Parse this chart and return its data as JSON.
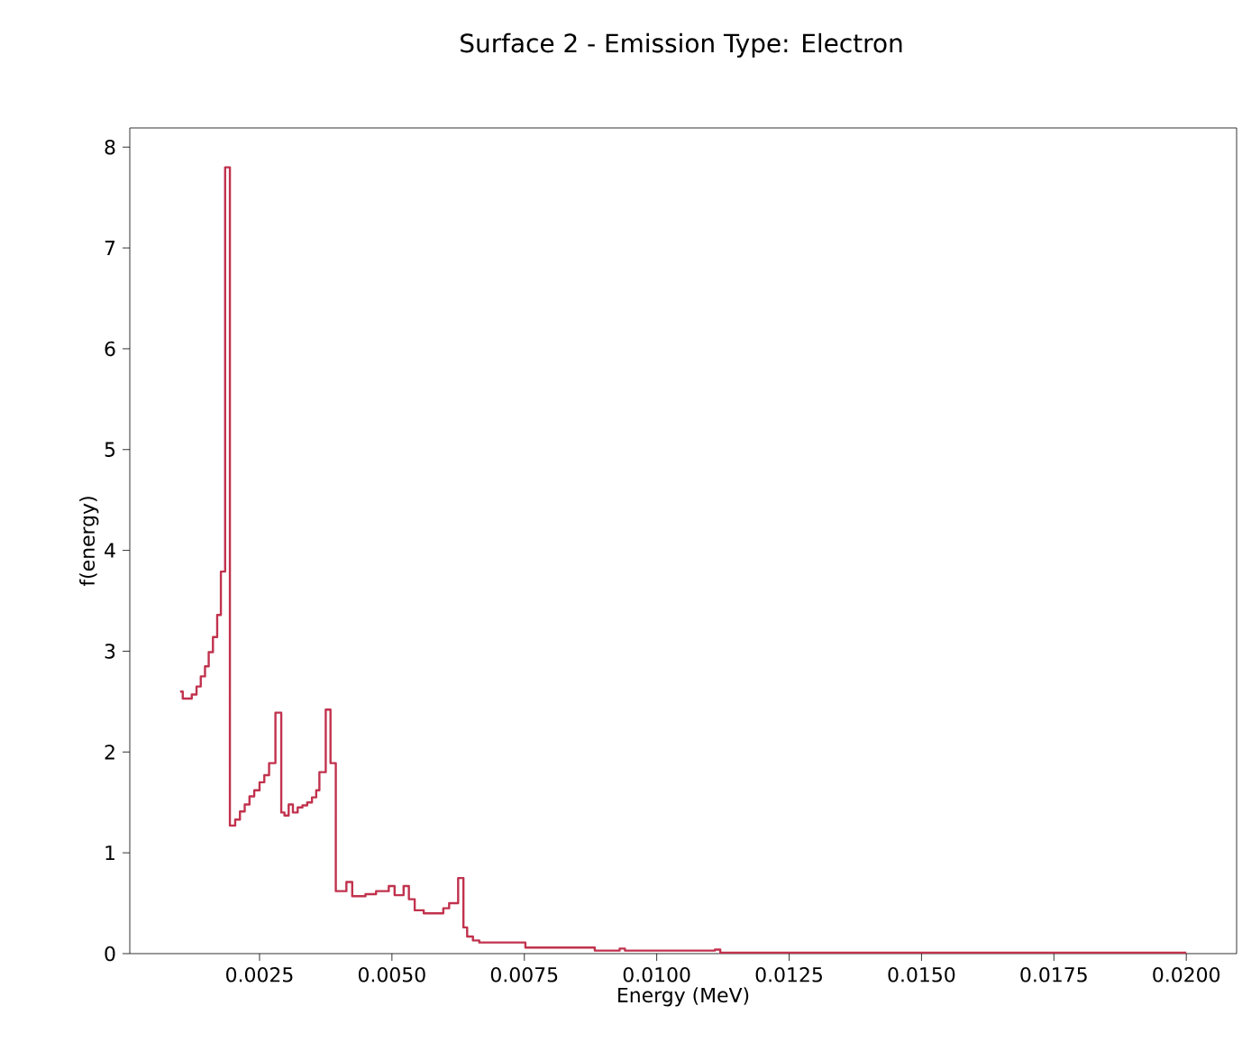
{
  "chart_data": {
    "type": "step",
    "title": "Surface 2 - Emission Type: Electron",
    "xlabel": "Energy (MeV)",
    "ylabel": "f(energy)",
    "xlim": [
      5e-05,
      0.02095
    ],
    "ylim": [
      0,
      8.19
    ],
    "xticks": [
      0.0025,
      {
        "value": 0.005,
        "label": "0.0050"
      },
      0.0075,
      {
        "value": 0.01,
        "label": "0.0100"
      },
      0.0125,
      {
        "value": 0.015,
        "label": "0.0150"
      },
      0.0175,
      {
        "value": 0.02,
        "label": "0.0200"
      }
    ],
    "yticks": [
      0,
      1,
      2,
      3,
      4,
      5,
      6,
      7,
      8
    ],
    "grid": false,
    "series": [
      {
        "color": "#c1324d",
        "x": [
          0.001,
          0.00105,
          0.00122,
          0.00131,
          0.00139,
          0.00147,
          0.00154,
          0.00162,
          0.0017,
          0.00177,
          0.00185,
          0.00194,
          0.00204,
          0.00213,
          0.00222,
          0.00231,
          0.0024,
          0.0025,
          0.00259,
          0.00268,
          0.0028,
          0.00291,
          0.00297,
          0.00305,
          0.00313,
          0.00322,
          0.00331,
          0.0034,
          0.00349,
          0.00357,
          0.00363,
          0.00375,
          0.00384,
          0.00394,
          0.00414,
          0.00425,
          0.0045,
          0.0047,
          0.00494,
          0.00505,
          0.00522,
          0.00532,
          0.00543,
          0.0056,
          0.00597,
          0.00608,
          0.00625,
          0.00635,
          0.00642,
          0.00653,
          0.00665,
          0.00752,
          0.00883,
          0.0093,
          0.0094,
          0.0111,
          0.0112,
          0.02
        ],
        "values": [
          2.6,
          2.53,
          2.57,
          2.65,
          2.75,
          2.85,
          2.99,
          3.14,
          3.36,
          3.79,
          7.8,
          1.27,
          1.33,
          1.41,
          1.48,
          1.56,
          1.62,
          1.7,
          1.77,
          1.89,
          2.39,
          1.4,
          1.37,
          1.48,
          1.4,
          1.45,
          1.47,
          1.5,
          1.55,
          1.62,
          1.8,
          2.42,
          1.89,
          0.62,
          0.71,
          0.57,
          0.59,
          0.62,
          0.67,
          0.58,
          0.67,
          0.54,
          0.43,
          0.4,
          0.45,
          0.5,
          0.75,
          0.26,
          0.17,
          0.13,
          0.11,
          0.06,
          0.03,
          0.05,
          0.03,
          0.04,
          0.01,
          0.01
        ]
      }
    ]
  }
}
